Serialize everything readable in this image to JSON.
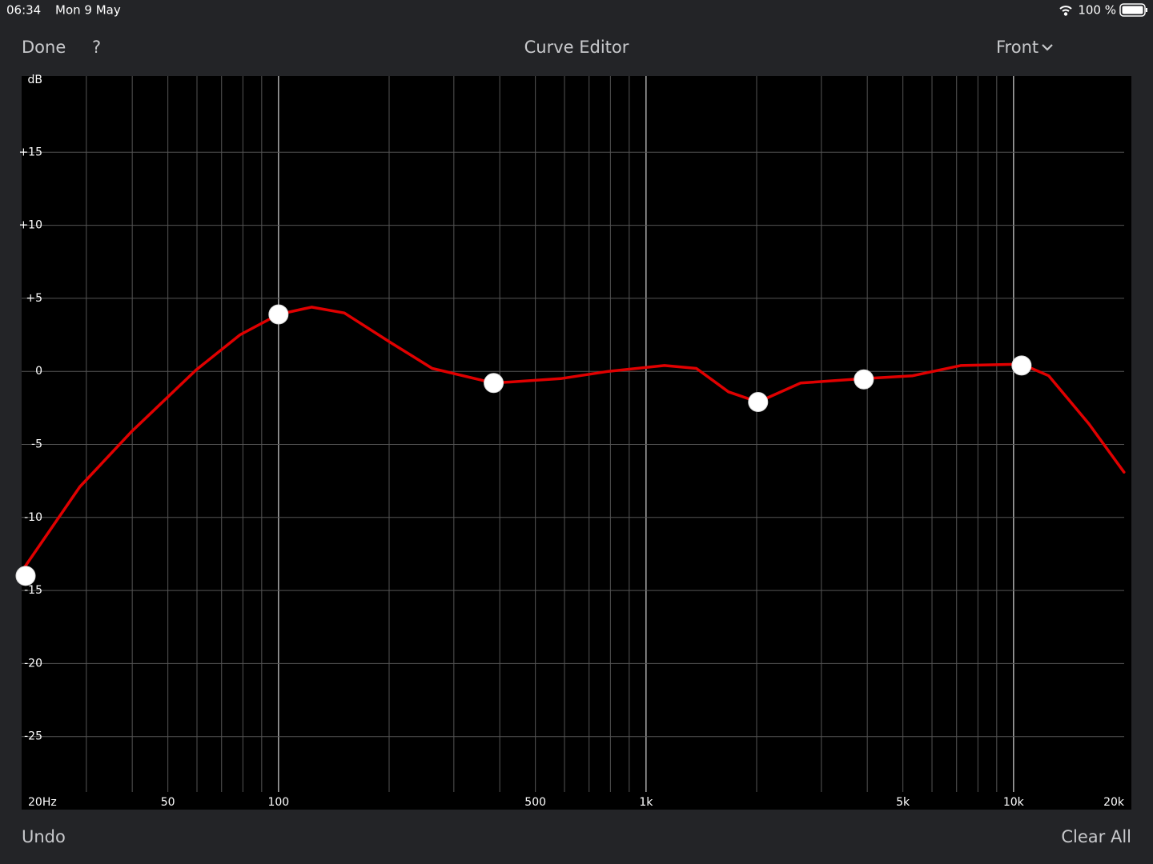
{
  "status_bar": {
    "time": "06:34",
    "date": "Mon 9 May",
    "battery": "100 %"
  },
  "nav_bar": {
    "left": "Done",
    "help": "?",
    "title": "Curve Editor",
    "channel": "Front"
  },
  "toolbar": {
    "undo": "Undo",
    "clear": "Clear All"
  },
  "chart_data": {
    "type": "line",
    "xscale": "log",
    "y_label": "dB",
    "xlim": [
      20,
      20000
    ],
    "ylim": [
      -30,
      20
    ],
    "xticks": [
      {
        "value": 20,
        "label": "20Hz"
      },
      50,
      100,
      500,
      {
        "value": 1000,
        "label": "1k"
      },
      {
        "value": 5000,
        "label": "5k"
      },
      {
        "value": 10000,
        "label": "10k"
      },
      {
        "value": 20000,
        "label": "20k"
      }
    ],
    "yticks": [
      {
        "value": 15,
        "label": "+15"
      },
      {
        "value": 10,
        "label": "+10"
      },
      {
        "value": 5,
        "label": "+5"
      },
      0,
      -5,
      -10,
      -15,
      -20,
      -25
    ],
    "xgrid": [
      30,
      40,
      50,
      60,
      70,
      80,
      90,
      200,
      300,
      400,
      500,
      600,
      700,
      800,
      900,
      2000,
      3000,
      4000,
      5000,
      6000,
      7000,
      8000,
      9000
    ],
    "xgrid_major": [
      100,
      1000,
      10000
    ],
    "grid": true,
    "series": [
      {
        "color": "#e00000",
        "x": [
          20,
          28.8,
          39.9,
          59.7,
          78.6,
          100,
          123,
          151,
          204,
          262,
          385,
          585,
          790,
          1122,
          1371,
          1676,
          2018,
          2633,
          3914,
          5315,
          7179,
          10515,
          12470,
          16040,
          19980
        ],
        "values": [
          -13.7,
          -7.9,
          -4.1,
          0.1,
          2.5,
          3.9,
          4.4,
          4.0,
          1.9,
          0.2,
          -0.8,
          -0.5,
          0,
          0.4,
          0.2,
          -1.4,
          -2.1,
          -0.8,
          -0.5,
          -0.3,
          0.4,
          0.5,
          -0.3,
          -3.6,
          -6.9
        ]
      },
      {
        "color": "#ffffff",
        "marker": true,
        "x": [
          20,
          100,
          385,
          2018,
          3914,
          10515
        ],
        "values": [
          -14,
          3.9,
          -0.8,
          -2.1,
          -0.55,
          0.4
        ]
      }
    ]
  }
}
